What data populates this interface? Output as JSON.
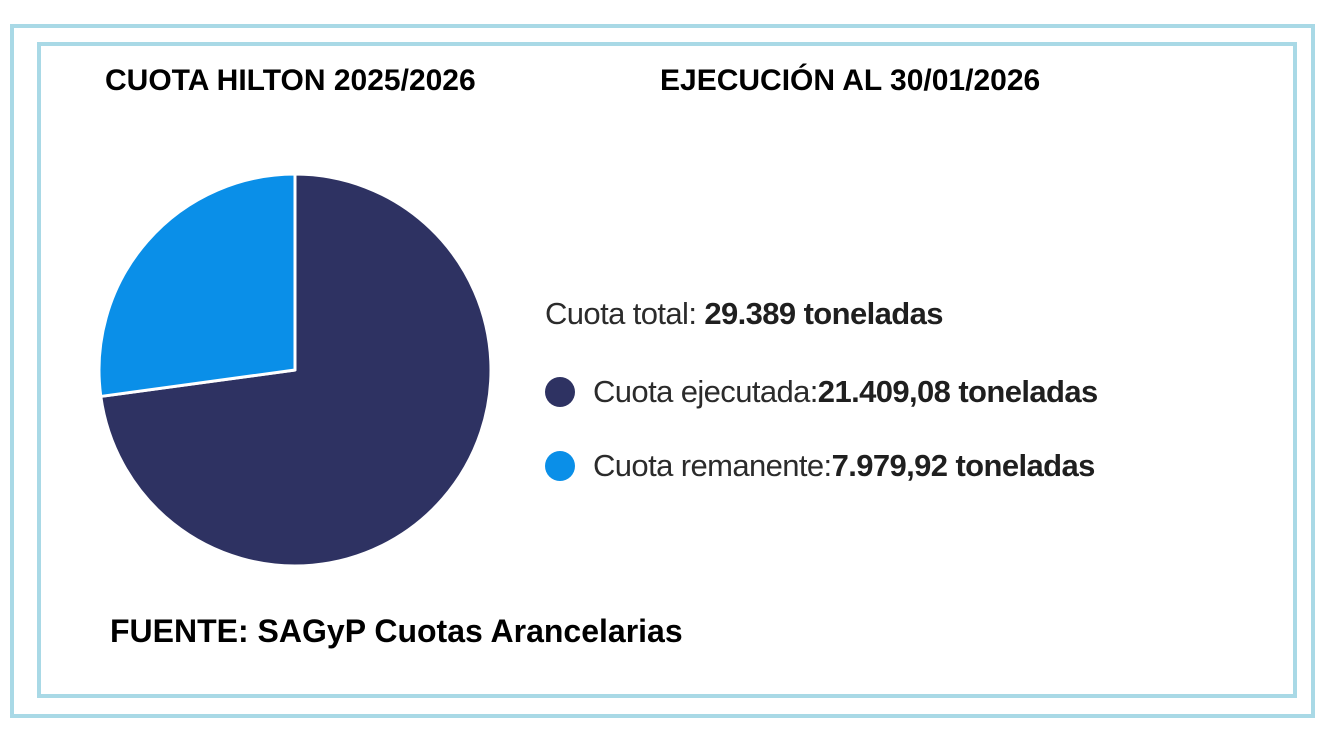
{
  "header": {
    "title_left": "CUOTA HILTON 2025/2026",
    "title_right": "EJECUCIÓN AL 30/01/2026"
  },
  "legend": {
    "total_label": "Cuota total: ",
    "total_value": "29.389 toneladas",
    "items": [
      {
        "label": "Cuota ejecutada: ",
        "value": "21.409,08 toneladas",
        "color": "#2e3262"
      },
      {
        "label": "Cuota remanente: ",
        "value": "7.979,92 toneladas",
        "color": "#0a8fe8"
      }
    ]
  },
  "source": "FUENTE: SAGyP Cuotas Arancelarias",
  "colors": {
    "frame": "#a9d9e6",
    "executed": "#2e3262",
    "remaining": "#0a8fe8"
  },
  "chart_data": {
    "type": "pie",
    "title": "CUOTA HILTON 2025/2026",
    "subtitle": "EJECUCIÓN AL 30/01/2026",
    "total": 29389,
    "categories": [
      "Cuota ejecutada",
      "Cuota remanente"
    ],
    "values": [
      21409.08,
      7979.92
    ],
    "colors": [
      "#2e3262",
      "#0a8fe8"
    ],
    "unit": "toneladas",
    "legend_position": "right"
  }
}
